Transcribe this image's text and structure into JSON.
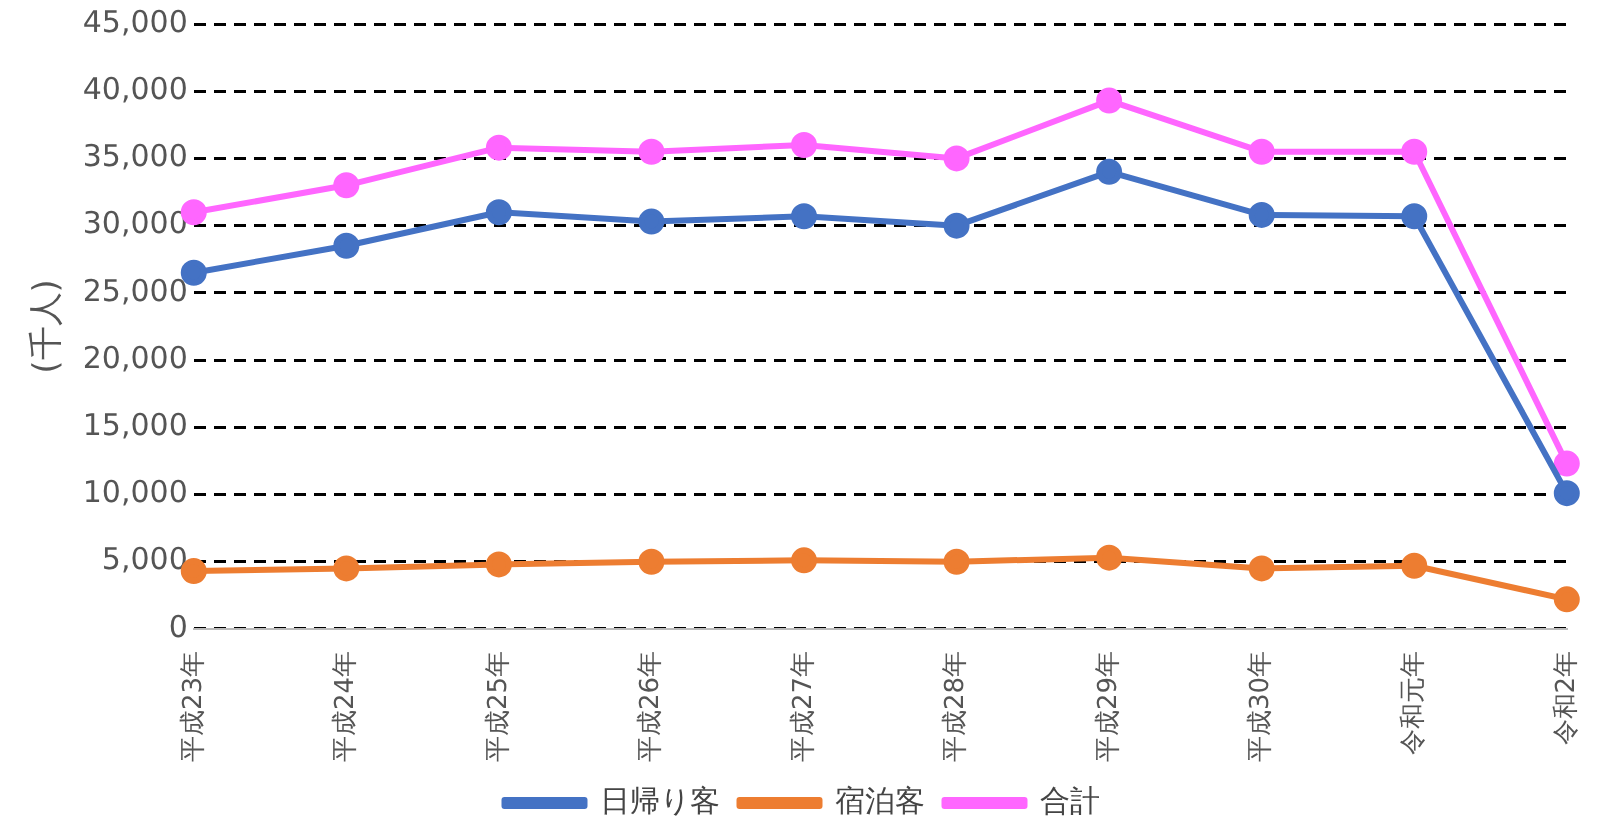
{
  "chart_data": {
    "type": "line",
    "ylabel": "(千人)",
    "categories": [
      "平成23年",
      "平成24年",
      "平成25年",
      "平成26年",
      "平成27年",
      "平成28年",
      "平成29年",
      "平成30年",
      "令和元年",
      "令和2年"
    ],
    "series": [
      {
        "name": "日帰り客",
        "color": "#4472c4",
        "values": [
          26500,
          28500,
          31000,
          30300,
          30700,
          30000,
          34000,
          30800,
          30700,
          10100
        ]
      },
      {
        "name": "宿泊客",
        "color": "#ed7d31",
        "values": [
          4300,
          4500,
          4800,
          5000,
          5100,
          5000,
          5300,
          4500,
          4700,
          2200
        ]
      },
      {
        "name": "合計",
        "color": "#ff66ff",
        "values": [
          31000,
          33000,
          35800,
          35500,
          36000,
          35000,
          39300,
          35500,
          35500,
          12300
        ]
      }
    ],
    "ylim": [
      0,
      45000
    ],
    "yticks": [
      0,
      {
        "value": 5000,
        "label": "5,000"
      },
      {
        "value": 10000,
        "label": "10,000"
      },
      {
        "value": 15000,
        "label": "15,000"
      },
      {
        "value": 20000,
        "label": "20,000"
      },
      {
        "value": 25000,
        "label": "25,000"
      },
      {
        "value": 30000,
        "label": "30,000"
      },
      {
        "value": 35000,
        "label": "35,000"
      },
      {
        "value": 40000,
        "label": "40,000"
      },
      {
        "value": 45000,
        "label": "45,000"
      }
    ],
    "grid": "y",
    "legend": "bottom",
    "marker": "circle",
    "line_style": "solid"
  }
}
